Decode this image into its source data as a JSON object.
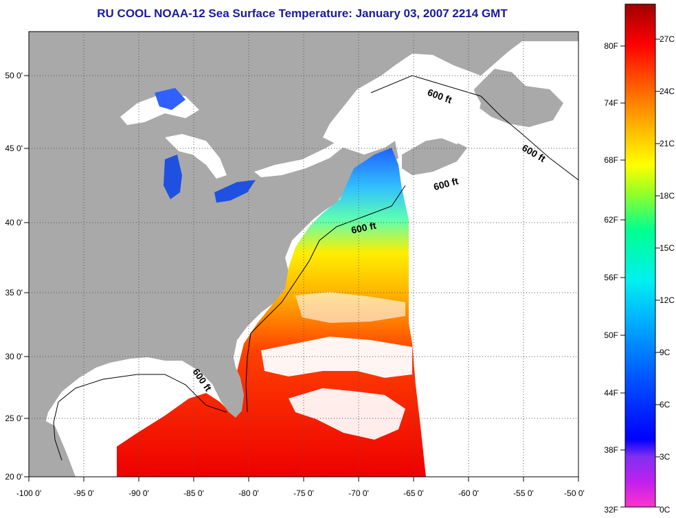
{
  "title": "RU COOL  NOAA-12  Sea Surface Temperature:  January 03, 2007 2214 GMT",
  "map": {
    "lon_labels": [
      "-100 0'",
      "-95 0'",
      "-90 0'",
      "-85 0'",
      "-80 0'",
      "-75 0'",
      "-70 0'",
      "-65 0'",
      "-60 0'",
      "-55 0'",
      "-50 0'"
    ],
    "lat_labels": [
      "50 0'",
      "45 0'",
      "40 0'",
      "35 0'",
      "30 0'",
      "25 0'",
      "20 0'"
    ],
    "lon_range": [
      -100,
      -50
    ],
    "lat_range": [
      20,
      52.5
    ],
    "isobath_labels": [
      "600 ft",
      "600 ft",
      "600 ft",
      "600 ft",
      "600 ft"
    ],
    "colors": {
      "land": "#a9a9a9",
      "cloud_no_data": "#ffffff"
    }
  },
  "colorbar": {
    "f_labels": [
      "80F",
      "74F",
      "68F",
      "62F",
      "56F",
      "50F",
      "44F",
      "38F",
      "32F"
    ],
    "c_labels": [
      "27C",
      "24C",
      "21C",
      "18C",
      "15C",
      "12C",
      "9C",
      "6C",
      "3C",
      "0C"
    ],
    "range_c": [
      0,
      29
    ],
    "colors": [
      "#ff33cc",
      "#a020f0",
      "#0000ff",
      "#0080ff",
      "#00e5ff",
      "#00ff80",
      "#c8ff00",
      "#ffff00",
      "#ffa500",
      "#ff4000",
      "#ff0000",
      "#a00000"
    ]
  }
}
